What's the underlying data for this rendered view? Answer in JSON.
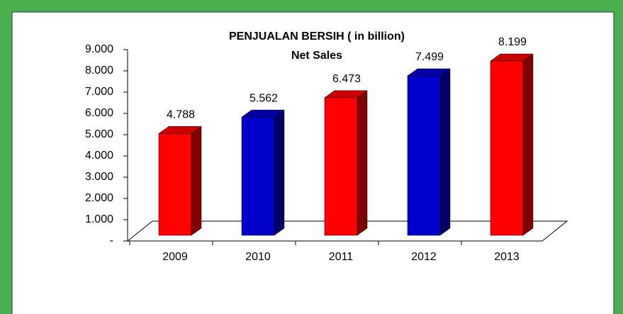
{
  "chart_data": {
    "type": "bar3d",
    "title": "PENJUALAN BERSIH ( in billion)",
    "subtitle": "Net Sales",
    "categories": [
      "2009",
      "2010",
      "2011",
      "2012",
      "2013"
    ],
    "values": [
      4788,
      5562,
      6473,
      7499,
      8199
    ],
    "value_labels": [
      "4.788",
      "5.562",
      "6.473",
      "7.499",
      "8.199"
    ],
    "colors": [
      "#ff0000",
      "#0000cc",
      "#ff0000",
      "#0000cc",
      "#ff0000"
    ],
    "ylim": [
      0,
      9000
    ],
    "yticks": [
      {
        "value": 0,
        "label": "-"
      },
      {
        "value": 1000,
        "label": "1.000"
      },
      {
        "value": 2000,
        "label": "2.000"
      },
      {
        "value": 3000,
        "label": "3.000"
      },
      {
        "value": 4000,
        "label": "4.000"
      },
      {
        "value": 5000,
        "label": "5.000"
      },
      {
        "value": 6000,
        "label": "6.000"
      },
      {
        "value": 7000,
        "label": "7.000"
      },
      {
        "value": 8000,
        "label": "8.000"
      },
      {
        "value": 9000,
        "label": "9.000"
      }
    ]
  }
}
